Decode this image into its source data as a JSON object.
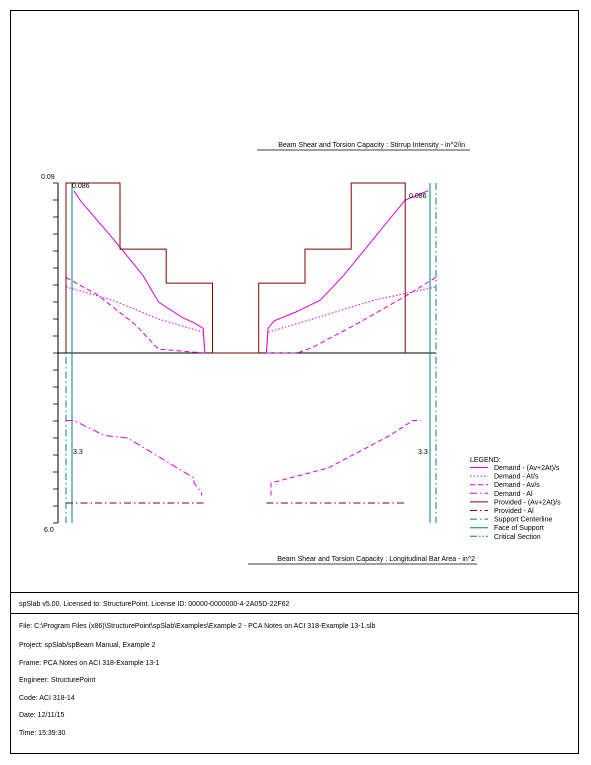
{
  "colors": {
    "magenta": "#e000e0",
    "maroon": "#800000",
    "teal": "#008080",
    "black": "#000000"
  },
  "chart_data": {
    "type": "line",
    "top_title": "Beam Shear and Torsion Capacity : Stirrup Intensity - in^2/in",
    "bottom_title": "Beam Shear and Torsion Capacity : Longitudinal Bar Area - in^2",
    "top_axis": {
      "max_label": "0.09",
      "min": 0,
      "max": 0.09
    },
    "bottom_axis": {
      "max_label": "6.0",
      "min": 0,
      "max": 6.0
    },
    "annotations": {
      "top_left": "0.086",
      "top_right": "0.086",
      "bottom_left": "3.3",
      "bottom_right": "3.3"
    },
    "legend": {
      "title": "LEGEND:",
      "items": [
        {
          "label": "Demand - (Av+2At)/s",
          "color": "#e000e0",
          "style": "solid"
        },
        {
          "label": "Demand - At/s",
          "color": "#e000e0",
          "style": "dot"
        },
        {
          "label": "Demand - Av/s",
          "color": "#e000e0",
          "style": "dash"
        },
        {
          "label": "Demand - Al",
          "color": "#e000e0",
          "style": "dashdot"
        },
        {
          "label": "Provided - (Av+2At)/s",
          "color": "#800000",
          "style": "solid"
        },
        {
          "label": "Provided - Al",
          "color": "#800000",
          "style": "dashdot"
        },
        {
          "label": "Support Centerline",
          "color": "#008080",
          "style": "dashdot"
        },
        {
          "label": "Face of Support",
          "color": "#008080",
          "style": "solid"
        },
        {
          "label": "Critical Section",
          "color": "#008080",
          "style": "dashdotdot"
        }
      ]
    },
    "x_range": [
      0,
      24
    ],
    "top_series": [
      {
        "name": "Demand - (Av+2At)/s",
        "style": "solid",
        "color": "#e000e0",
        "segments": [
          [
            [
              0.5,
              0.086
            ],
            [
              1.0,
              0.08
            ],
            [
              3.0,
              0.061
            ],
            [
              5.0,
              0.041
            ],
            [
              6.0,
              0.027
            ],
            [
              7.5,
              0.019
            ],
            [
              8.3,
              0.016
            ],
            [
              8.9,
              0.013
            ],
            [
              9.0,
              0.0
            ]
          ],
          [
            [
              13.0,
              0.0
            ],
            [
              13.1,
              0.013
            ],
            [
              13.5,
              0.017
            ],
            [
              15.0,
              0.022
            ],
            [
              16.5,
              0.028
            ],
            [
              18.0,
              0.041
            ],
            [
              20.0,
              0.061
            ],
            [
              22.0,
              0.081
            ],
            [
              23.5,
              0.086
            ]
          ]
        ]
      },
      {
        "name": "Demand - At/s",
        "style": "dot",
        "color": "#e000e0",
        "segments": [
          [
            [
              0.0,
              0.035
            ],
            [
              3.0,
              0.028
            ],
            [
              6.0,
              0.018
            ],
            [
              8.9,
              0.011
            ],
            [
              9.0,
              0.0
            ]
          ],
          [
            [
              13.0,
              0.0
            ],
            [
              13.1,
              0.011
            ],
            [
              16.0,
              0.018
            ],
            [
              20.0,
              0.028
            ],
            [
              24.0,
              0.035
            ]
          ]
        ]
      },
      {
        "name": "Demand - Av/s",
        "style": "dash",
        "color": "#e000e0",
        "segments": [
          [
            [
              0.0,
              0.04
            ],
            [
              2.0,
              0.031
            ],
            [
              4.5,
              0.015
            ],
            [
              6.0,
              0.002
            ],
            [
              9.0,
              0.0
            ]
          ],
          [
            [
              13.0,
              0.0
            ],
            [
              15.0,
              0.0
            ],
            [
              16.0,
              0.003
            ],
            [
              19.0,
              0.016
            ],
            [
              22.0,
              0.03
            ],
            [
              24.0,
              0.04
            ]
          ]
        ]
      },
      {
        "name": "Provided - (Av+2At)/s",
        "style": "solid",
        "color": "#800000",
        "segments": [
          [
            [
              0.0,
              0.0
            ],
            [
              0.0,
              0.09
            ],
            [
              3.5,
              0.09
            ],
            [
              3.5,
              0.055
            ],
            [
              6.5,
              0.055
            ],
            [
              6.5,
              0.037
            ],
            [
              9.5,
              0.037
            ],
            [
              9.5,
              0.0
            ],
            [
              12.5,
              0.0
            ],
            [
              12.5,
              0.037
            ],
            [
              15.5,
              0.037
            ],
            [
              15.5,
              0.055
            ],
            [
              18.5,
              0.055
            ],
            [
              18.5,
              0.09
            ],
            [
              22.0,
              0.09
            ],
            [
              22.0,
              0.0
            ]
          ]
        ]
      }
    ],
    "bottom_series": [
      {
        "name": "Demand - Al (left)",
        "style": "dashdot",
        "color": "#e000e0",
        "points": [
          [
            0.0,
            3.3
          ],
          [
            0.5,
            3.3
          ],
          [
            2.5,
            2.7
          ],
          [
            4.0,
            2.6
          ],
          [
            8.3,
            1.0
          ],
          [
            8.3,
            0.8
          ],
          [
            8.8,
            0.4
          ],
          [
            8.8,
            0.3
          ]
        ]
      },
      {
        "name": "Demand - Al (right)",
        "style": "dash",
        "color": "#e000e0",
        "points": [
          [
            13.3,
            0.3
          ],
          [
            13.3,
            0.8
          ],
          [
            17.0,
            1.4
          ],
          [
            21.0,
            2.7
          ],
          [
            22.5,
            3.3
          ],
          [
            23.0,
            3.3
          ]
        ]
      },
      {
        "name": "Provided - Al",
        "style": "dashdot",
        "color": "#800000",
        "segments": [
          [
            [
              0.0,
              0.0
            ],
            [
              9.0,
              0.0
            ]
          ],
          [
            [
              13.0,
              0.0
            ],
            [
              22.0,
              0.0
            ]
          ]
        ]
      }
    ]
  },
  "license": "spSlab v5.00. Licensed to: StructurePoint. License ID: 00000-0000000-4-2A05D-22F62",
  "info": {
    "file": "File: C:\\Program Files (x86)\\StructurePoint\\spSlab\\Examples\\Example 2 - PCA Notes on ACI 318-Example 13-1.slb",
    "project": "Project: spSlab/spBeam Manual, Example 2",
    "frame": "Frame: PCA Notes on ACI 318-Example 13-1",
    "engineer": "Engineer: StructurePoint",
    "code": "Code: ACI 318-14",
    "date": "Date: 12/11/15",
    "time": "Time: 15:39:30"
  }
}
